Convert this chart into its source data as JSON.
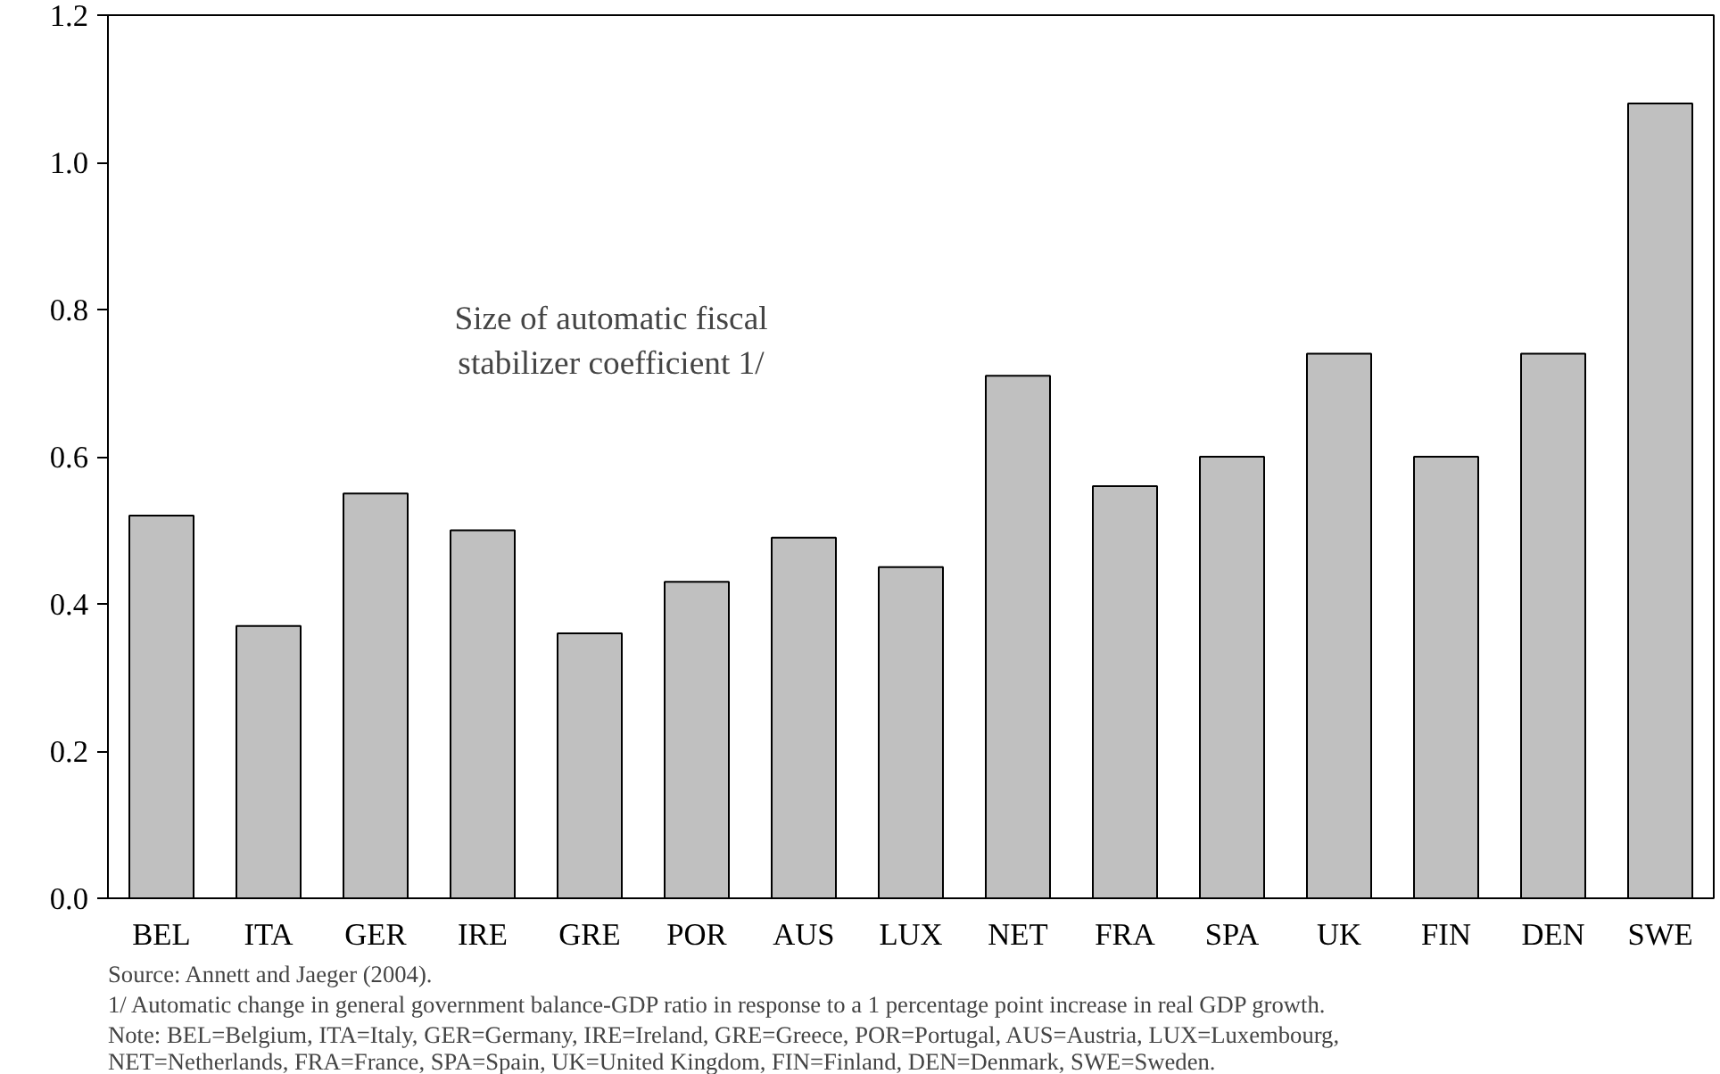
{
  "chart_data": {
    "type": "bar",
    "title": "Size of automatic fiscal\nstabilizer coefficient 1/",
    "categories": [
      "BEL",
      "ITA",
      "GER",
      "IRE",
      "GRE",
      "POR",
      "AUS",
      "LUX",
      "NET",
      "FRA",
      "SPA",
      "UK",
      "FIN",
      "DEN",
      "SWE"
    ],
    "values": [
      0.52,
      0.37,
      0.55,
      0.5,
      0.36,
      0.43,
      0.49,
      0.45,
      0.71,
      0.56,
      0.6,
      0.74,
      0.6,
      0.74,
      1.08
    ],
    "color": "#c0c0c0",
    "ylim": [
      0,
      1.2
    ],
    "yticks": [
      {
        "value": 0,
        "label": "0.0"
      },
      {
        "value": 0.2,
        "label": "0.2"
      },
      {
        "value": 0.4,
        "label": "0.4"
      },
      {
        "value": 0.6,
        "label": "0.6"
      },
      {
        "value": 0.8,
        "label": "0.8"
      },
      {
        "value": 1.0,
        "label": "1.0"
      },
      {
        "value": 1.2,
        "label": "1.2"
      }
    ],
    "grid": false,
    "annotations": [
      "Source: Annett and Jaeger (2004).",
      "1/ Automatic change in general government balance-GDP ratio in response to a 1 percentage point increase in real GDP growth.",
      "Note: BEL=Belgium, ITA=Italy, GER=Germany, IRE=Ireland, GRE=Greece, POR=Portugal, AUS=Austria, LUX=Luxembourg,\nNET=Netherlands, FRA=France, SPA=Spain, UK=United Kingdom, FIN=Finland, DEN=Denmark, SWE=Sweden."
    ]
  }
}
